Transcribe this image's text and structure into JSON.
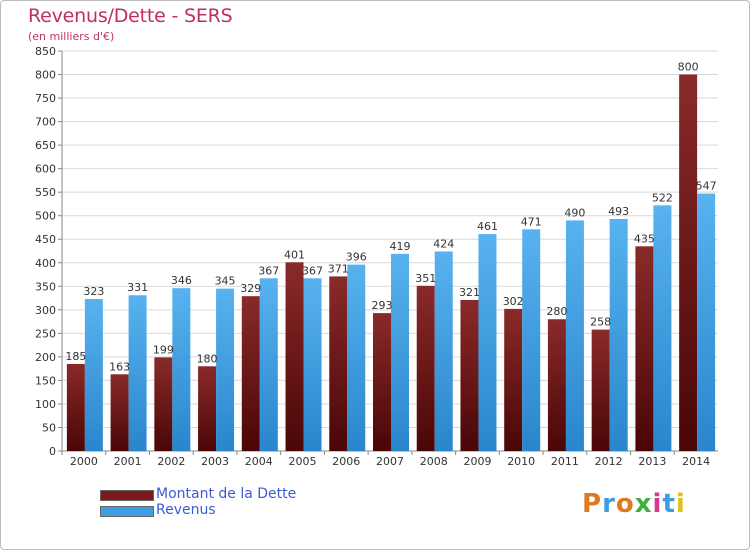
{
  "header": {
    "title": "Revenus/Dette - SERS",
    "subtitle": "(en milliers d'€)"
  },
  "legend": {
    "items": [
      {
        "label": "Montant de la Dette",
        "color": "#7a1a1a"
      },
      {
        "label": "Revenus",
        "color": "#3d9de0"
      }
    ]
  },
  "logo": {
    "text": "Proxiti",
    "letter_colors": [
      "#e07a1f",
      "#3d9de0",
      "#e07a1f",
      "#3db03d",
      "#d63b8a",
      "#3d9de0",
      "#e0c01f"
    ]
  },
  "chart_data": {
    "type": "bar",
    "categories": [
      "2000",
      "2001",
      "2002",
      "2003",
      "2004",
      "2005",
      "2006",
      "2007",
      "2008",
      "2009",
      "2010",
      "2011",
      "2012",
      "2013",
      "2014"
    ],
    "series": [
      {
        "name": "Montant de la Dette",
        "color": "#7a1a1a",
        "values": [
          185,
          163,
          199,
          180,
          329,
          401,
          371,
          293,
          351,
          321,
          302,
          280,
          258,
          435,
          800
        ]
      },
      {
        "name": "Revenus",
        "color": "#3d9de0",
        "values": [
          323,
          331,
          346,
          345,
          367,
          367,
          396,
          419,
          424,
          461,
          471,
          490,
          493,
          522,
          547
        ]
      }
    ],
    "title": "Revenus/Dette - SERS",
    "ylabel": "(en milliers d'€)",
    "ylim": [
      0,
      850
    ],
    "yticks": [
      0,
      50,
      100,
      150,
      200,
      250,
      300,
      350,
      400,
      450,
      500,
      550,
      600,
      650,
      700,
      750,
      800,
      850
    ],
    "grid": true,
    "legend_position": "bottom-left"
  }
}
